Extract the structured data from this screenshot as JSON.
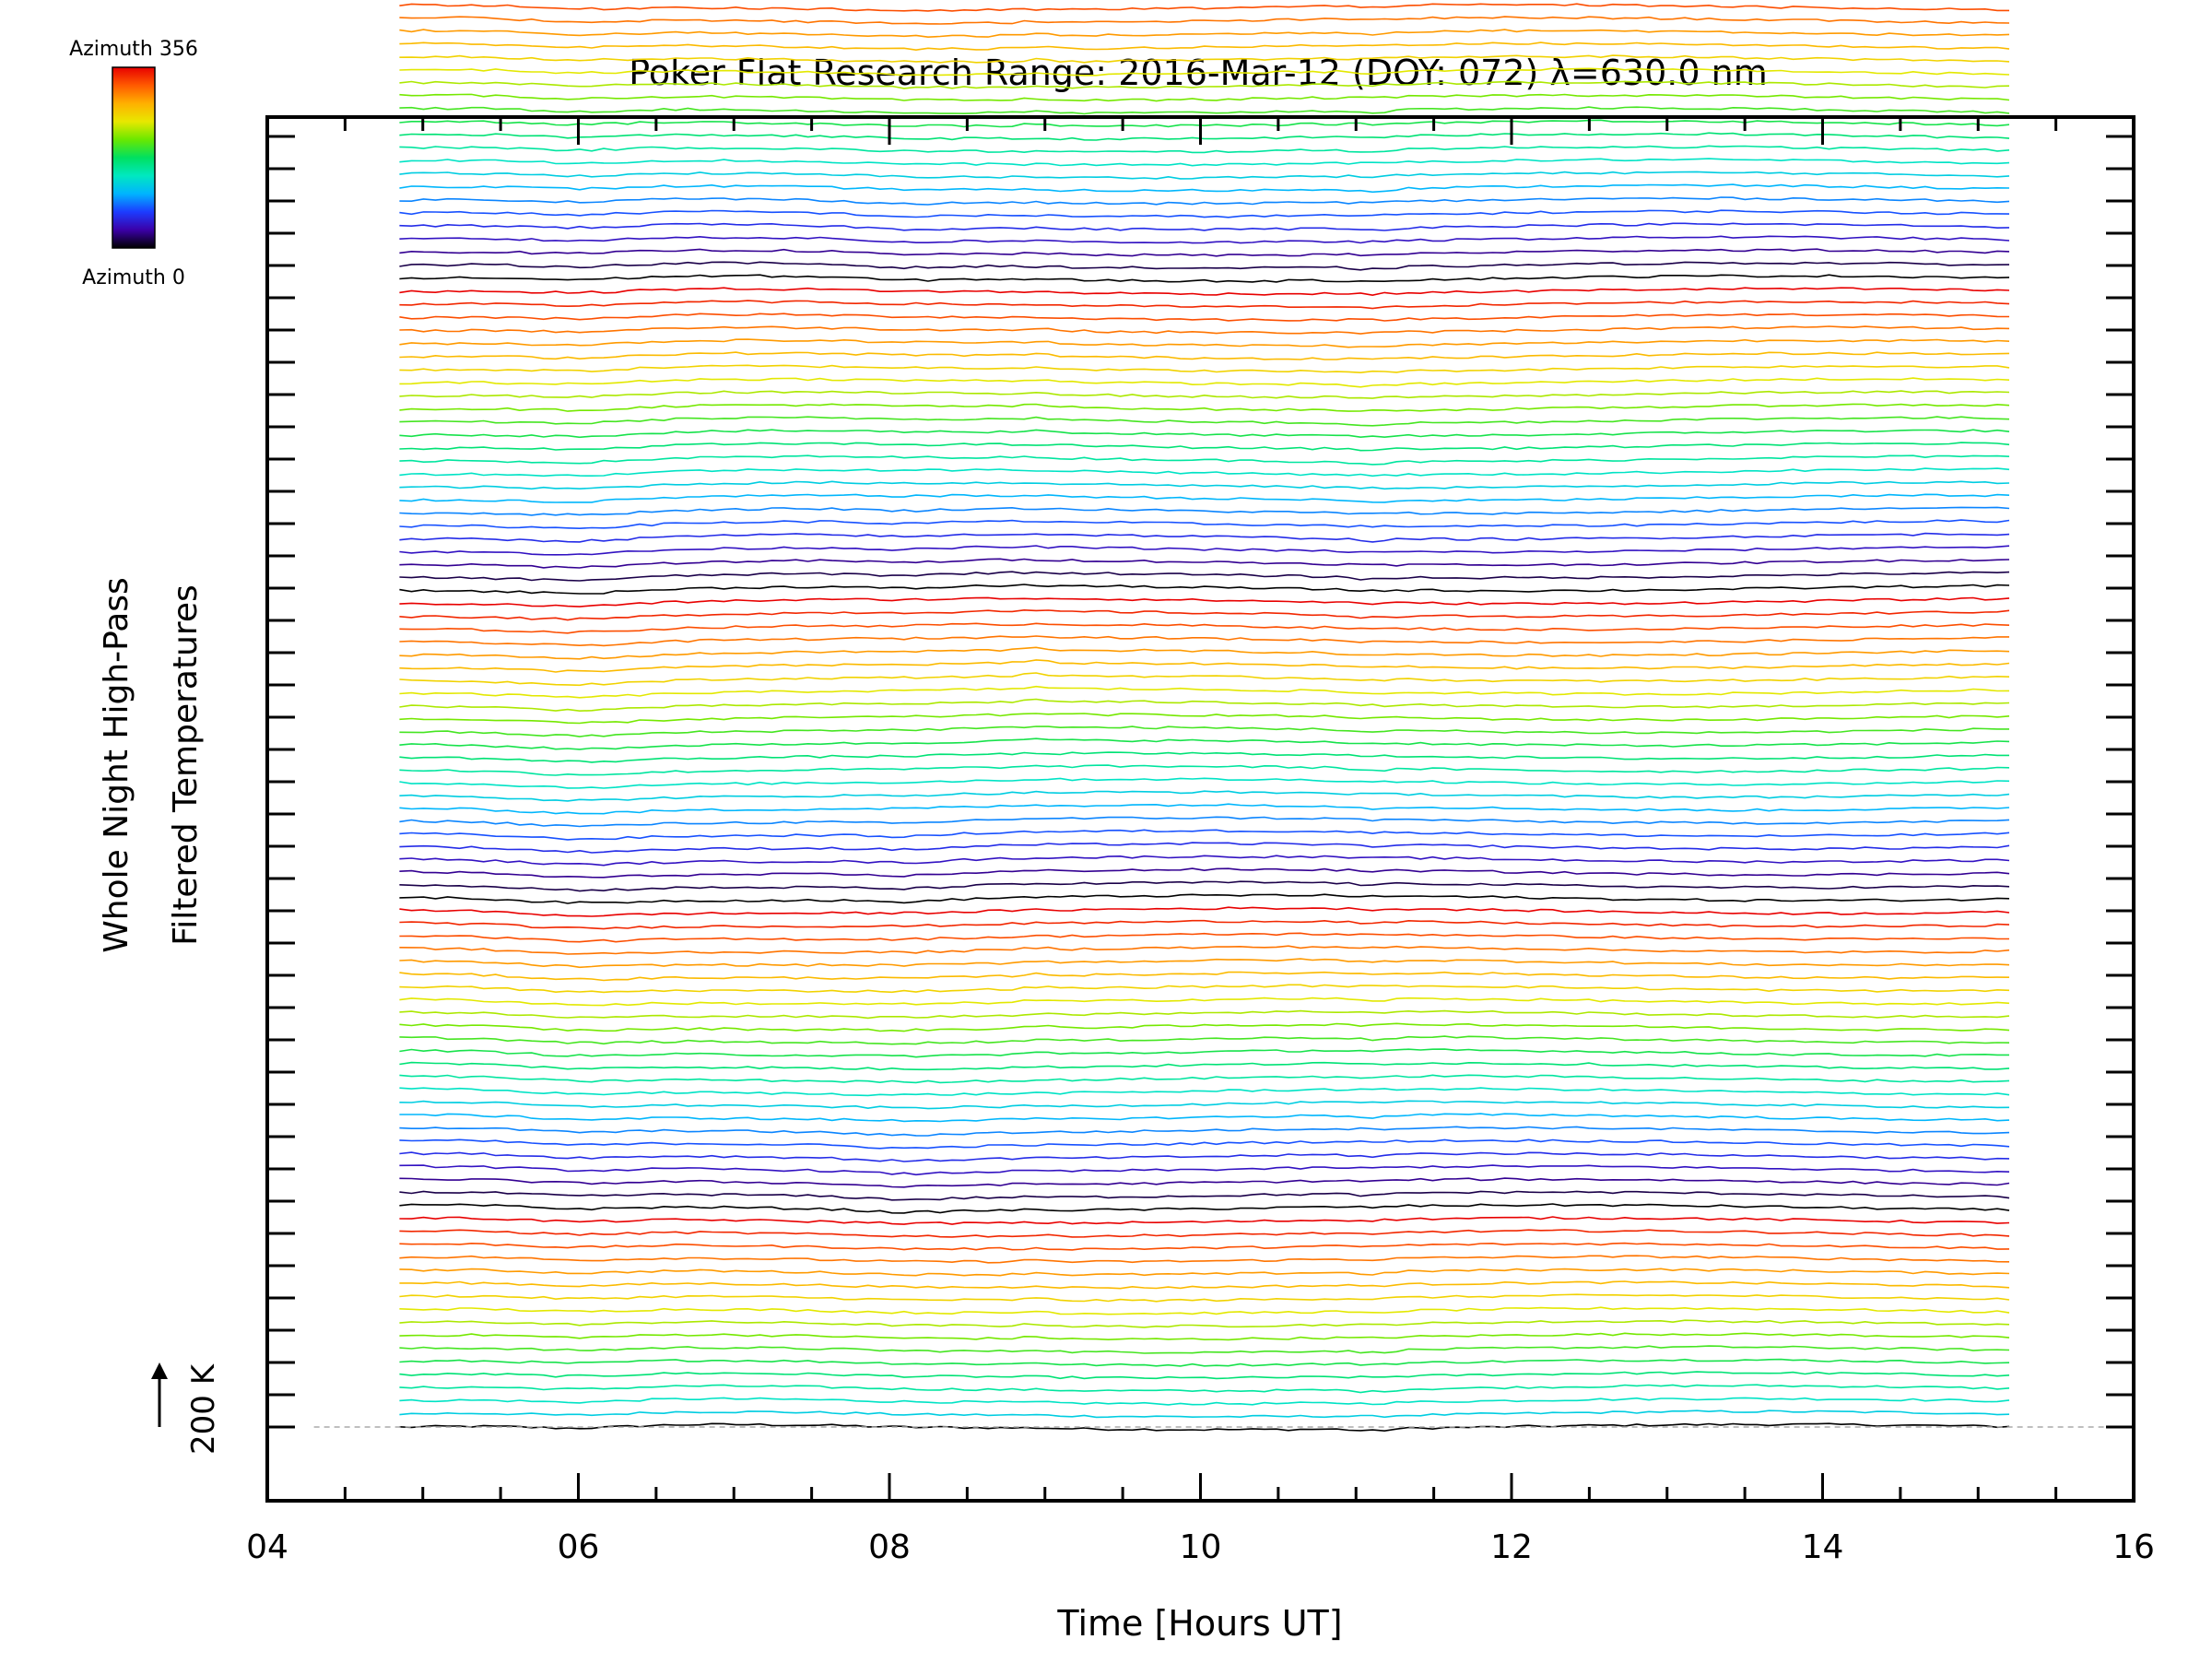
{
  "chart_data": {
    "type": "line",
    "title": "Poker Flat Research Range: 2016-Mar-12 (DOY: 072) λ=630.0 nm",
    "xlabel": "Time [Hours UT]",
    "ylabel_line1": "Whole Night High-Pass",
    "ylabel_line2": "Filtered Temperatures",
    "xlim": [
      4,
      16
    ],
    "x_ticks": [
      "04",
      "06",
      "08",
      "10",
      "12",
      "14",
      "16"
    ],
    "x_start": 4.85,
    "x_end": 15.2,
    "series_count": 137,
    "series_spacing_K": 40,
    "scale_bar": {
      "label": "200 K",
      "value_K": 200
    },
    "baseline_K": 0,
    "colorbar": {
      "top_label": "Azimuth 356",
      "bottom_label": "Azimuth 0",
      "colors": [
        "#000000",
        "#3b00a8",
        "#1c3cff",
        "#00b4ff",
        "#00e8c0",
        "#00e060",
        "#6ae800",
        "#e8e800",
        "#ffb000",
        "#ff5a00",
        "#e80000"
      ]
    },
    "grid": false,
    "legend": "colorbar top-left"
  }
}
